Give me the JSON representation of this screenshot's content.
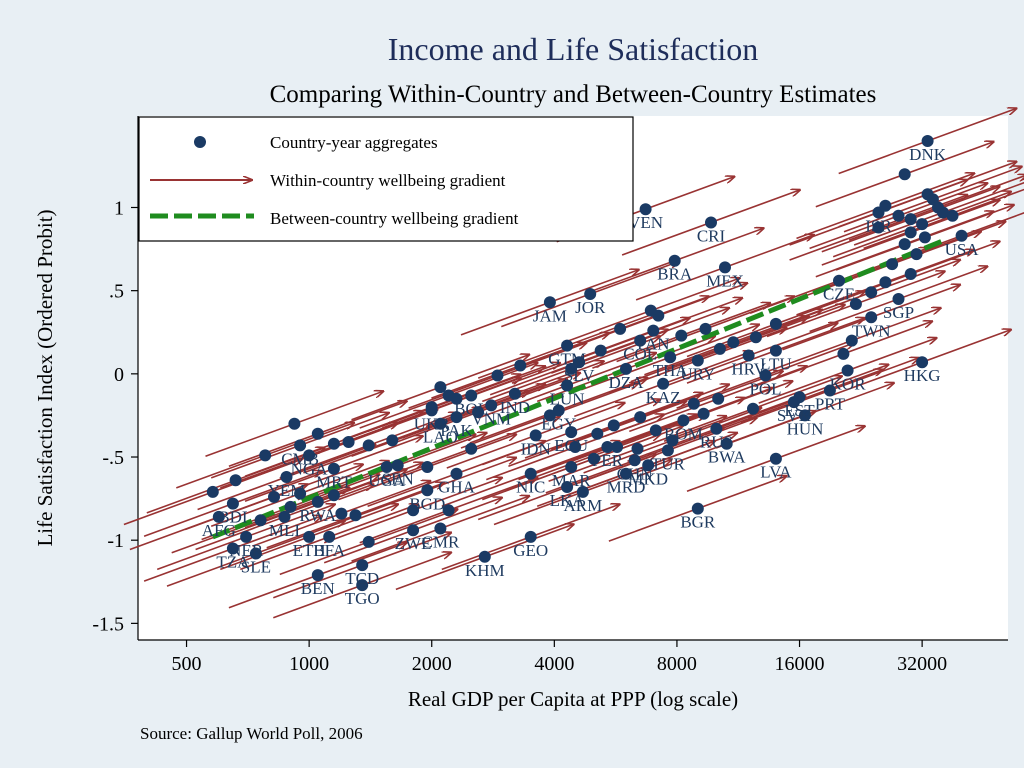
{
  "chart_data": {
    "type": "scatter",
    "title": "Income and Life Satisfaction",
    "subtitle": "Comparing Within-Country and Between-Country Estimates",
    "xlabel": "Real GDP per Capita at PPP (log scale)",
    "ylabel": "Life Satisfaction Index (Ordered Probit)",
    "source": "Gallup World Poll, 2006",
    "x_scale": "log2",
    "xlim": [
      380,
      52000
    ],
    "ylim": [
      -1.6,
      1.55
    ],
    "x_ticks": [
      {
        "value": 500,
        "label": "500"
      },
      {
        "value": 1000,
        "label": "1000"
      },
      {
        "value": 2000,
        "label": "2000"
      },
      {
        "value": 4000,
        "label": "4000"
      },
      {
        "value": 8000,
        "label": "8000"
      },
      {
        "value": 16000,
        "label": "16000"
      },
      {
        "value": 32000,
        "label": "32000"
      }
    ],
    "y_ticks": [
      {
        "value": 1,
        "label": "1"
      },
      {
        "value": 0.5,
        "label": ".5"
      },
      {
        "value": 0,
        "label": "0"
      },
      {
        "value": -0.5,
        "label": "-.5"
      },
      {
        "value": -1,
        "label": "-1"
      },
      {
        "value": -1.5,
        "label": "-1.5"
      }
    ],
    "legend": {
      "placement": "top-left",
      "entries": [
        {
          "label": "Country-year aggregates",
          "kind": "marker"
        },
        {
          "label": "Within-country wellbeing gradient",
          "kind": "arrow"
        },
        {
          "label": "Between-country wellbeing gradient",
          "kind": "dashed-line"
        }
      ]
    },
    "colors": {
      "marker": "#1a3a64",
      "arrow": "#993333",
      "fit": "#1f8c1f",
      "label": "#1e3a5f",
      "title": "#1e2d5a"
    },
    "fit_line": {
      "x_start": 580,
      "y_start": -0.98,
      "x_end": 36000,
      "y_end": 0.8
    },
    "labeled_points": [
      {
        "label": "DNK",
        "gdp": 33000,
        "y": 1.4
      },
      {
        "label": "VEN",
        "gdp": 6700,
        "y": 0.99
      },
      {
        "label": "CRI",
        "gdp": 9700,
        "y": 0.91
      },
      {
        "label": "BRA",
        "gdp": 7900,
        "y": 0.68
      },
      {
        "label": "MEX",
        "gdp": 10500,
        "y": 0.64
      },
      {
        "label": "JAM",
        "gdp": 3900,
        "y": 0.43
      },
      {
        "label": "JOR",
        "gdp": 4900,
        "y": 0.48
      },
      {
        "label": "CZE",
        "gdp": 20000,
        "y": 0.56
      },
      {
        "label": "TWN",
        "gdp": 24000,
        "y": 0.34
      },
      {
        "label": "SGP",
        "gdp": 28000,
        "y": 0.45
      },
      {
        "label": "ISR",
        "gdp": 25000,
        "y": 0.97
      },
      {
        "label": "USA",
        "gdp": 40000,
        "y": 0.83
      },
      {
        "label": "GTM",
        "gdp": 4300,
        "y": 0.17
      },
      {
        "label": "SLV",
        "gdp": 4600,
        "y": 0.07
      },
      {
        "label": "PAN",
        "gdp": 7000,
        "y": 0.26
      },
      {
        "label": "COL",
        "gdp": 6500,
        "y": 0.2
      },
      {
        "label": "DZA",
        "gdp": 6000,
        "y": 0.03
      },
      {
        "label": "THA",
        "gdp": 7700,
        "y": 0.1
      },
      {
        "label": "URY",
        "gdp": 9000,
        "y": 0.08
      },
      {
        "label": "HRV",
        "gdp": 12000,
        "y": 0.11
      },
      {
        "label": "LTU",
        "gdp": 14000,
        "y": 0.14
      },
      {
        "label": "POL",
        "gdp": 13200,
        "y": -0.01
      },
      {
        "label": "KOR",
        "gdp": 21000,
        "y": 0.02
      },
      {
        "label": "HKG",
        "gdp": 32000,
        "y": 0.07
      },
      {
        "label": "PRT",
        "gdp": 19000,
        "y": -0.1
      },
      {
        "label": "EST",
        "gdp": 16000,
        "y": -0.14
      },
      {
        "label": "HUN",
        "gdp": 16500,
        "y": -0.25
      },
      {
        "label": "SVK",
        "gdp": 15500,
        "y": -0.17
      },
      {
        "label": "KAZ",
        "gdp": 7400,
        "y": -0.06
      },
      {
        "label": "ROM",
        "gdp": 8300,
        "y": -0.28
      },
      {
        "label": "RUS",
        "gdp": 10000,
        "y": -0.33
      },
      {
        "label": "TUR",
        "gdp": 7600,
        "y": -0.46
      },
      {
        "label": "BWA",
        "gdp": 10600,
        "y": -0.42
      },
      {
        "label": "LVA",
        "gdp": 14000,
        "y": -0.51
      },
      {
        "label": "MKD",
        "gdp": 6800,
        "y": -0.55
      },
      {
        "label": "CHN",
        "gdp": 6300,
        "y": -0.52
      },
      {
        "label": "BGR",
        "gdp": 9000,
        "y": -0.81
      },
      {
        "label": "LUN",
        "gdp": 4300,
        "y": -0.07
      },
      {
        "label": "EGY",
        "gdp": 4100,
        "y": -0.22
      },
      {
        "label": "ECU",
        "gdp": 4400,
        "y": -0.35
      },
      {
        "label": "IDN",
        "gdp": 3600,
        "y": -0.37
      },
      {
        "label": "NIC",
        "gdp": 3500,
        "y": -0.6
      },
      {
        "label": "ARM",
        "gdp": 4700,
        "y": -0.71
      },
      {
        "label": "LKA",
        "gdp": 4300,
        "y": -0.68
      },
      {
        "label": "PER",
        "gdp": 5400,
        "y": -0.44
      },
      {
        "label": "MAR",
        "gdp": 4400,
        "y": -0.56
      },
      {
        "label": "MRD",
        "gdp": 6000,
        "y": -0.6
      },
      {
        "label": "GEO",
        "gdp": 3500,
        "y": -0.98
      },
      {
        "label": "KHM",
        "gdp": 2700,
        "y": -1.1
      },
      {
        "label": "CMR",
        "gdp": 2100,
        "y": -0.93
      },
      {
        "label": "ZWE",
        "gdp": 1800,
        "y": -0.94
      },
      {
        "label": "TGO",
        "gdp": 1350,
        "y": -1.27
      },
      {
        "label": "BEN",
        "gdp": 1050,
        "y": -1.21
      },
      {
        "label": "TCD",
        "gdp": 1350,
        "y": -1.15
      },
      {
        "label": "GHA",
        "gdp": 2300,
        "y": -0.6
      },
      {
        "label": "BGD",
        "gdp": 1950,
        "y": -0.7
      },
      {
        "label": "UGA",
        "gdp": 1550,
        "y": -0.56
      },
      {
        "label": "SEN",
        "gdp": 1650,
        "y": -0.55
      },
      {
        "label": "NGA",
        "gdp": 1000,
        "y": -0.49
      },
      {
        "label": "CMB",
        "gdp": 950,
        "y": -0.43
      },
      {
        "label": "YEM",
        "gdp": 880,
        "y": -0.62
      },
      {
        "label": "MRT",
        "gdp": 1150,
        "y": -0.57
      },
      {
        "label": "RWA",
        "gdp": 1050,
        "y": -0.77
      },
      {
        "label": "ETH",
        "gdp": 1000,
        "y": -0.98
      },
      {
        "label": "BFA",
        "gdp": 1120,
        "y": -0.98
      },
      {
        "label": "BDI",
        "gdp": 650,
        "y": -0.78
      },
      {
        "label": "AFG",
        "gdp": 600,
        "y": -0.86
      },
      {
        "label": "NER",
        "gdp": 700,
        "y": -0.98
      },
      {
        "label": "TZA",
        "gdp": 650,
        "y": -1.05
      },
      {
        "label": "SLE",
        "gdp": 740,
        "y": -1.08
      },
      {
        "label": "MLI",
        "gdp": 870,
        "y": -0.86
      },
      {
        "label": "UKR",
        "gdp": 2000,
        "y": -0.22
      },
      {
        "label": "LAO",
        "gdp": 2100,
        "y": -0.3
      },
      {
        "label": "BOL",
        "gdp": 2500,
        "y": -0.13
      },
      {
        "label": "VNM",
        "gdp": 2800,
        "y": -0.19
      },
      {
        "label": "IND",
        "gdp": 3200,
        "y": -0.12
      },
      {
        "label": "PAK",
        "gdp": 2300,
        "y": -0.26
      }
    ],
    "extra_points": [
      [
        26000,
        1.01
      ],
      [
        28000,
        0.95
      ],
      [
        30000,
        0.93
      ],
      [
        32000,
        0.9
      ],
      [
        33000,
        1.08
      ],
      [
        34000,
        1.05
      ],
      [
        36000,
        0.97
      ],
      [
        30000,
        0.85
      ],
      [
        29000,
        0.78
      ],
      [
        31000,
        0.72
      ],
      [
        27000,
        0.66
      ],
      [
        30000,
        0.6
      ],
      [
        26000,
        0.55
      ],
      [
        24000,
        0.49
      ],
      [
        29000,
        1.2
      ],
      [
        25000,
        0.88
      ],
      [
        32500,
        0.82
      ],
      [
        35000,
        1.0
      ],
      [
        38000,
        0.95
      ],
      [
        22000,
        0.42
      ],
      [
        21500,
        0.2
      ],
      [
        20500,
        0.12
      ],
      [
        14000,
        0.3
      ],
      [
        12500,
        0.22
      ],
      [
        11000,
        0.19
      ],
      [
        10200,
        0.15
      ],
      [
        9400,
        0.27
      ],
      [
        8200,
        0.23
      ],
      [
        7200,
        0.35
      ],
      [
        6900,
        0.38
      ],
      [
        5800,
        0.27
      ],
      [
        5200,
        0.14
      ],
      [
        4400,
        0.03
      ],
      [
        3300,
        0.05
      ],
      [
        2900,
        -0.01
      ],
      [
        2100,
        -0.08
      ],
      [
        2300,
        -0.15
      ],
      [
        2200,
        -0.13
      ],
      [
        2000,
        -0.2
      ],
      [
        2600,
        -0.23
      ],
      [
        3900,
        -0.25
      ],
      [
        5100,
        -0.36
      ],
      [
        5600,
        -0.31
      ],
      [
        6500,
        -0.26
      ],
      [
        7100,
        -0.34
      ],
      [
        7800,
        -0.4
      ],
      [
        9300,
        -0.24
      ],
      [
        10100,
        -0.15
      ],
      [
        12300,
        -0.21
      ],
      [
        8800,
        -0.18
      ],
      [
        4500,
        -0.44
      ],
      [
        5000,
        -0.51
      ],
      [
        5700,
        -0.44
      ],
      [
        6400,
        -0.45
      ],
      [
        2500,
        -0.45
      ],
      [
        1950,
        -0.56
      ],
      [
        1600,
        -0.4
      ],
      [
        1400,
        -0.43
      ],
      [
        1250,
        -0.41
      ],
      [
        1150,
        -0.42
      ],
      [
        1050,
        -0.36
      ],
      [
        920,
        -0.3
      ],
      [
        780,
        -0.49
      ],
      [
        660,
        -0.64
      ],
      [
        580,
        -0.71
      ],
      [
        820,
        -0.74
      ],
      [
        950,
        -0.72
      ],
      [
        1150,
        -0.73
      ],
      [
        1300,
        -0.85
      ],
      [
        1200,
        -0.84
      ],
      [
        900,
        -0.8
      ],
      [
        760,
        -0.88
      ],
      [
        1800,
        -0.82
      ],
      [
        2200,
        -0.82
      ],
      [
        1400,
        -1.01
      ]
    ],
    "arrow_slope_per_doubling": 0.27,
    "arrow_doublings": 1.45
  }
}
